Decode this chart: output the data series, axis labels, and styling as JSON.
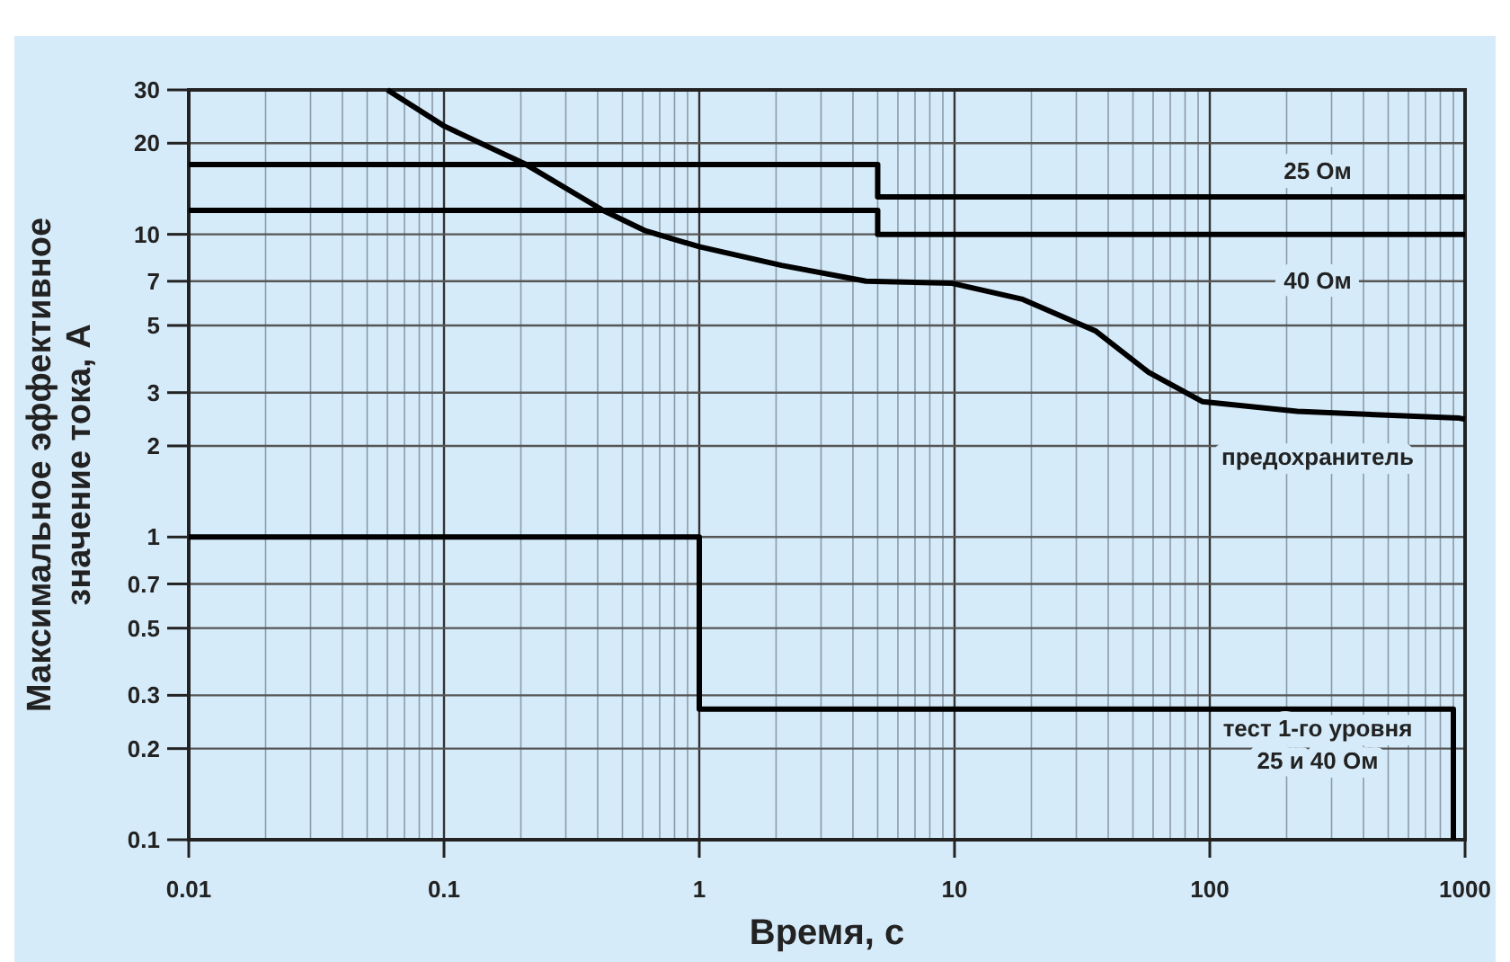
{
  "chart_data": {
    "type": "line",
    "xlabel": "Время, с",
    "ylabel": "Максимальное эффективное значение тока, А",
    "log": "xy",
    "grid": true,
    "marker": "none",
    "line_style": "solid",
    "xlim": [
      0.01,
      1000
    ],
    "xticks": [
      0.01,
      0.1,
      1,
      10,
      100,
      1000
    ],
    "ylim": [
      0.1,
      30
    ],
    "yticks": [
      0.1,
      0.2,
      0.3,
      0.5,
      0.7,
      1,
      2,
      3,
      5,
      7,
      10,
      20,
      30
    ],
    "series": [
      {
        "name": "25 Ом",
        "type": "step",
        "color": "#000000",
        "x": [
          0.01,
          5,
          1000
        ],
        "values": [
          17,
          13.3,
          13.3
        ]
      },
      {
        "name": "40 Ом",
        "type": "step",
        "color": "#000000",
        "x": [
          0.01,
          5,
          1000
        ],
        "values": [
          12,
          10,
          10
        ]
      },
      {
        "name": "предохранитель",
        "type": "line",
        "color": "#000000",
        "x": [
          0.06,
          0.1,
          0.21,
          0.42,
          0.61,
          1,
          2.1,
          4.5,
          9.7,
          18.5,
          35.6,
          57.6,
          93.8,
          220,
          950,
          1000
        ],
        "values": [
          30,
          22.8,
          17,
          12,
          10.3,
          9.1,
          7.9,
          7,
          6.9,
          6.1,
          4.8,
          3.5,
          2.8,
          2.6,
          2.47,
          2.45
        ]
      },
      {
        "name": "тест 1-го уровня 25 и 40 Ом",
        "type": "step",
        "color": "#000000",
        "x": [
          0.01,
          1,
          900,
          900
        ],
        "values": [
          1,
          0.27,
          0.27,
          0.1
        ]
      }
    ]
  }
}
